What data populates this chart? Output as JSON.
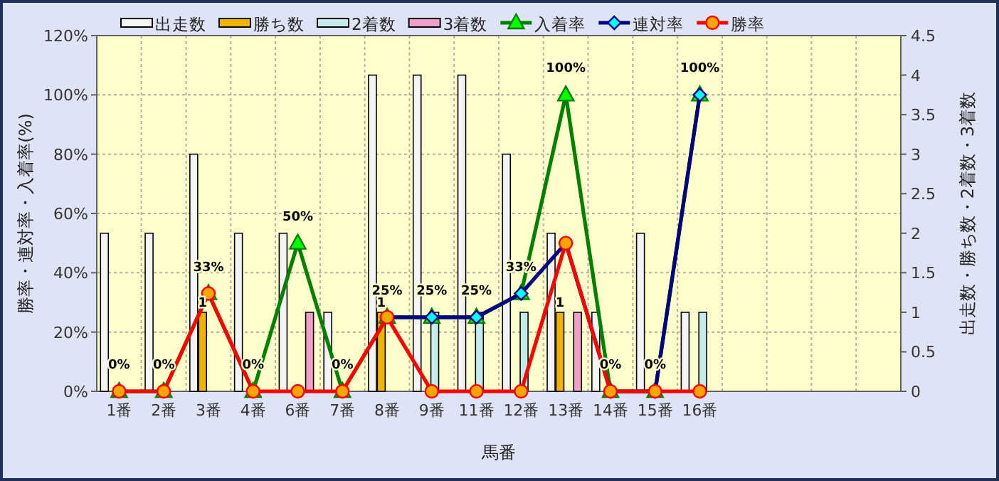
{
  "chart_data": {
    "type": "bar",
    "xlabel": "馬番",
    "ylabel": "勝率・連対率・入着率(%)",
    "y2label": "出走数・勝ち数・2着数・3着数",
    "categories": [
      "1番",
      "2番",
      "3番",
      "4番",
      "6番",
      "7番",
      "8番",
      "9番",
      "11番",
      "12番",
      "13番",
      "14番",
      "15番",
      "16番",
      null,
      null,
      null,
      null
    ],
    "series": [
      {
        "name": "出走数",
        "type": "bar",
        "axis": "y2",
        "color": "#f4f4f4",
        "values": [
          2,
          2,
          3,
          2,
          2,
          1,
          4,
          4,
          4,
          3,
          2,
          1,
          2,
          1,
          null,
          null,
          null,
          null
        ]
      },
      {
        "name": "勝ち数",
        "type": "bar",
        "axis": "y2",
        "color": "#f0b400",
        "values": [
          0,
          0,
          1,
          0,
          0,
          0,
          1,
          0,
          0,
          0,
          1,
          0,
          0,
          0,
          null,
          null,
          null,
          null
        ],
        "value_labels": [
          null,
          null,
          "1",
          null,
          null,
          null,
          "1",
          null,
          null,
          null,
          "1",
          null,
          null,
          null,
          null,
          null,
          null,
          null
        ]
      },
      {
        "name": "2着数",
        "type": "bar",
        "axis": "y2",
        "color": "#c4ecec",
        "values": [
          0,
          0,
          0,
          0,
          0,
          0,
          0,
          1,
          1,
          1,
          0,
          0,
          0,
          1,
          null,
          null,
          null,
          null
        ]
      },
      {
        "name": "3着数",
        "type": "bar",
        "axis": "y2",
        "color": "#f0a0c8",
        "values": [
          0,
          0,
          0,
          0,
          1,
          0,
          0,
          0,
          0,
          0,
          1,
          0,
          0,
          0,
          null,
          null,
          null,
          null
        ]
      },
      {
        "name": "入着率",
        "type": "line",
        "marker": "triangle",
        "color": "#008000",
        "values": [
          0,
          0,
          33,
          0,
          50,
          0,
          25,
          25,
          25,
          33,
          100,
          0,
          0,
          100,
          null,
          null,
          null,
          null
        ],
        "value_labels": [
          "0%",
          "0%",
          "33%",
          "0%",
          "50%",
          "0%",
          "25%",
          "25%",
          "25%",
          "33%",
          "100%",
          "0%",
          "0%",
          "100%",
          null,
          null,
          null,
          null
        ]
      },
      {
        "name": "連対率",
        "type": "line",
        "marker": "diamond",
        "color": "#000080",
        "values": [
          null,
          null,
          null,
          null,
          null,
          null,
          25,
          25,
          25,
          33,
          50,
          0,
          0,
          100,
          null,
          null,
          null,
          null
        ]
      },
      {
        "name": "勝率",
        "type": "line",
        "marker": "circle",
        "color": "#ff0000",
        "values": [
          0,
          0,
          33,
          0,
          0,
          0,
          25,
          0,
          0,
          0,
          50,
          0,
          0,
          0,
          null,
          null,
          null,
          null
        ]
      }
    ],
    "ylim": [
      0,
      120
    ],
    "yticks": [
      {
        "value": 0,
        "label": "0%"
      },
      {
        "value": 20,
        "label": "20%"
      },
      {
        "value": 40,
        "label": "40%"
      },
      {
        "value": 60,
        "label": "60%"
      },
      {
        "value": 80,
        "label": "80%"
      },
      {
        "value": 100,
        "label": "100%"
      },
      {
        "value": 120,
        "label": "120%"
      }
    ],
    "y2lim": [
      0,
      4.5
    ],
    "y2ticks": [
      0,
      0.5,
      1,
      1.5,
      2,
      2.5,
      3,
      3.5,
      4,
      4.5
    ],
    "grid": true,
    "legend": "top"
  }
}
